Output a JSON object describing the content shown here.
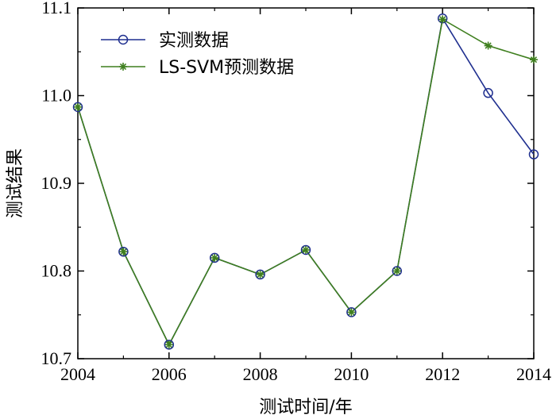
{
  "chart_data": {
    "type": "line",
    "title": "",
    "xlabel": "测试时间/年",
    "ylabel": "测试结果",
    "x": [
      2004,
      2005,
      2006,
      2007,
      2008,
      2009,
      2010,
      2011,
      2012,
      2013,
      2014
    ],
    "xlim": [
      2004,
      2014
    ],
    "ylim": [
      10.7,
      11.1
    ],
    "xticks": [
      2004,
      2006,
      2008,
      2010,
      2012,
      2014
    ],
    "yticks": [
      10.7,
      10.8,
      10.9,
      11.0,
      11.1
    ],
    "xtick_labels": [
      "2004",
      "2006",
      "2008",
      "2010",
      "2012",
      "2014"
    ],
    "ytick_labels": [
      "10.7",
      "10.8",
      "10.9",
      "11.0",
      "11.1"
    ],
    "grid": false,
    "legend_position": "top-left",
    "series": [
      {
        "name": "实测数据",
        "color": "#1f2f8f",
        "marker": "circle",
        "values": [
          10.987,
          10.822,
          10.716,
          10.815,
          10.796,
          10.824,
          10.753,
          10.8,
          11.088,
          11.003,
          10.933
        ]
      },
      {
        "name": "LS-SVM预测数据",
        "color": "#3f7f1f",
        "marker": "star",
        "values": [
          10.987,
          10.822,
          10.716,
          10.815,
          10.796,
          10.824,
          10.753,
          10.8,
          11.087,
          11.057,
          11.041
        ]
      }
    ]
  }
}
